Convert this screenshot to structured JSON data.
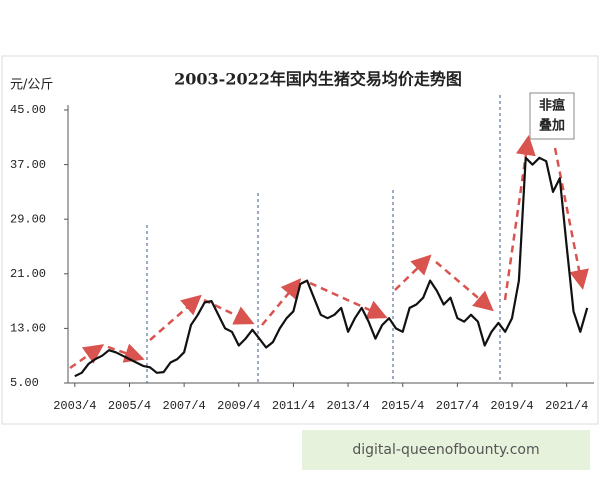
{
  "chart_data": {
    "type": "line",
    "title": "2003-2022年国内生猪交易均价走势图",
    "y_label": "元/公斤",
    "annotation": [
      "非瘟",
      "叠加"
    ],
    "watermark": "digital-queenofbounty.com",
    "color": "#111111",
    "x": [
      "2003/4",
      "2003/7",
      "2003/10",
      "2004/1",
      "2004/4",
      "2004/7",
      "2004/10",
      "2005/1",
      "2005/4",
      "2005/7",
      "2005/10",
      "2006/1",
      "2006/4",
      "2006/7",
      "2006/10",
      "2007/1",
      "2007/4",
      "2007/7",
      "2007/10",
      "2008/1",
      "2008/4",
      "2008/7",
      "2008/10",
      "2009/1",
      "2009/4",
      "2009/7",
      "2009/10",
      "2010/1",
      "2010/4",
      "2010/7",
      "2010/10",
      "2011/1",
      "2011/4",
      "2011/7",
      "2011/10",
      "2012/1",
      "2012/4",
      "2012/7",
      "2012/10",
      "2013/1",
      "2013/4",
      "2013/7",
      "2013/10",
      "2014/1",
      "2014/4",
      "2014/7",
      "2014/10",
      "2015/1",
      "2015/4",
      "2015/7",
      "2015/10",
      "2016/1",
      "2016/4",
      "2016/7",
      "2016/10",
      "2017/1",
      "2017/4",
      "2017/7",
      "2017/10",
      "2018/1",
      "2018/4",
      "2018/7",
      "2018/10",
      "2019/1",
      "2019/4",
      "2019/7",
      "2019/10",
      "2020/1",
      "2020/4",
      "2020/7",
      "2020/10",
      "2021/1",
      "2021/4",
      "2021/7",
      "2021/10",
      "2022/1"
    ],
    "values": [
      6.0,
      6.5,
      7.8,
      8.5,
      9.0,
      9.8,
      9.5,
      9.0,
      8.5,
      8.0,
      7.5,
      7.3,
      6.5,
      6.6,
      8.0,
      8.5,
      9.5,
      13.5,
      15.0,
      16.8,
      17.0,
      15.0,
      13.0,
      12.5,
      10.5,
      11.5,
      12.8,
      11.5,
      10.2,
      11.0,
      13.0,
      14.5,
      15.5,
      19.5,
      20.0,
      17.5,
      15.0,
      14.5,
      15.0,
      16.0,
      12.5,
      14.5,
      16.0,
      14.0,
      11.5,
      13.5,
      14.5,
      13.0,
      12.5,
      16.0,
      16.5,
      17.5,
      20.0,
      18.5,
      16.5,
      17.5,
      14.5,
      14.0,
      15.0,
      14.0,
      10.5,
      12.5,
      13.8,
      12.5,
      14.5,
      20.0,
      38.0,
      37.0,
      38.0,
      37.5,
      33.0,
      35.0,
      25.0,
      15.5,
      12.5,
      16.0
    ],
    "xlim": [
      "2003/1",
      "2022/4"
    ],
    "xticks": [
      "2003/4",
      "2005/4",
      "2007/4",
      "2009/4",
      "2011/4",
      "2013/4",
      "2015/4",
      "2017/4",
      "2019/4",
      "2021/4"
    ],
    "ylim": [
      5,
      45
    ],
    "yticks": [
      {
        "value": 5,
        "label": "5.00"
      },
      {
        "value": 13,
        "label": "13.00"
      },
      {
        "value": 21,
        "label": "21.00"
      },
      {
        "value": 29,
        "label": "29.00"
      },
      {
        "value": 37,
        "label": "37.00"
      },
      {
        "value": 45,
        "label": "45.00"
      }
    ]
  }
}
